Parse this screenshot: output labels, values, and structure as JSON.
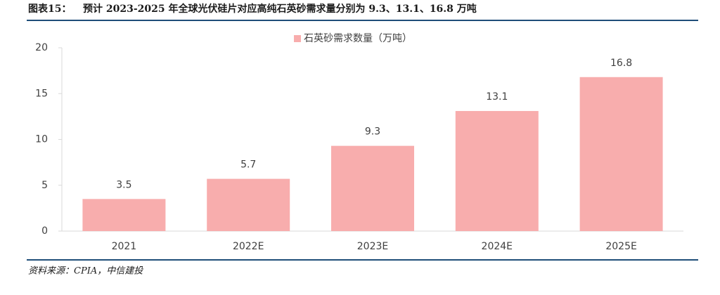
{
  "figure_label": "图表15：",
  "chart_data": {
    "type": "bar",
    "title": "预计 2023-2025 年全球光伏硅片对应高纯石英砂需求量分别为 9.3、13.1、16.8 万吨",
    "categories": [
      "2021",
      "2022E",
      "2023E",
      "2024E",
      "2025E"
    ],
    "series": [
      {
        "name": "石英砂需求数量（万吨）",
        "color": "#f8adad",
        "values": [
          3.5,
          5.7,
          9.3,
          13.1,
          16.8
        ]
      }
    ],
    "ylim": [
      0,
      20
    ],
    "yticks": [
      0,
      5,
      10,
      15,
      20
    ],
    "grid": false,
    "legend": "top"
  },
  "source": "资料来源：CPIA，中信建投"
}
